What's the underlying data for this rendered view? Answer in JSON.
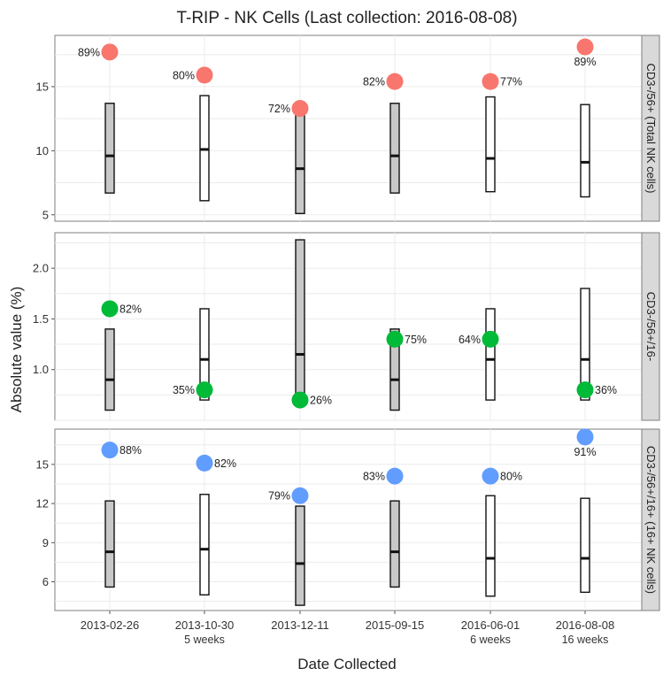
{
  "chart_data": {
    "type": "boxplot",
    "title": "T-RIP - NK Cells (Last collection: 2016-08-08)",
    "xlabel": "Date Collected",
    "ylabel": "Absolute value (%)",
    "categories": [
      "2013-02-26",
      "2013-10-30",
      "2013-12-11",
      "2015-09-15",
      "2016-06-01",
      "2016-08-08"
    ],
    "sublabels": [
      "",
      "5 weeks",
      "",
      "",
      "6 weeks",
      "16 weeks"
    ],
    "colors": {
      "panel_bg": "#ffffff",
      "grid": "#ebebeb",
      "strip_bg": "#d9d9d9",
      "box_shaded": "#c8c8c8",
      "box_open": "#ffffff"
    },
    "panels": [
      {
        "label": "CD3-/56+ (Total NK cells)",
        "ylim": [
          4.5,
          19
        ],
        "yticks": [
          5,
          10,
          15
        ],
        "point_color": "#f8766d",
        "boxes": [
          {
            "low": 6.7,
            "median": 9.6,
            "high": 13.7,
            "shaded": true
          },
          {
            "low": 6.1,
            "median": 10.1,
            "high": 14.3,
            "shaded": false
          },
          {
            "low": 5.1,
            "median": 8.6,
            "high": 13.3,
            "shaded": true
          },
          {
            "low": 6.7,
            "median": 9.6,
            "high": 13.7,
            "shaded": true
          },
          {
            "low": 6.8,
            "median": 9.4,
            "high": 14.2,
            "shaded": false
          },
          {
            "low": 6.4,
            "median": 9.1,
            "high": 13.6,
            "shaded": false
          }
        ],
        "points": [
          17.7,
          15.9,
          13.3,
          15.4,
          15.4,
          18.1
        ],
        "percentiles": [
          "89%",
          "80%",
          "72%",
          "82%",
          "77%",
          "89%"
        ],
        "label_pos": [
          "left",
          "left",
          "left",
          "left",
          "right",
          "below"
        ]
      },
      {
        "label": "CD3-/56+/16-",
        "ylim": [
          0.5,
          2.35
        ],
        "yticks": [
          1.0,
          1.5,
          2.0
        ],
        "point_color": "#00ba38",
        "boxes": [
          {
            "low": 0.6,
            "median": 0.9,
            "high": 1.4,
            "shaded": true
          },
          {
            "low": 0.7,
            "median": 1.1,
            "high": 1.6,
            "shaded": false
          },
          {
            "low": 0.7,
            "median": 1.15,
            "high": 2.28,
            "shaded": true
          },
          {
            "low": 0.6,
            "median": 0.9,
            "high": 1.4,
            "shaded": true
          },
          {
            "low": 0.7,
            "median": 1.1,
            "high": 1.6,
            "shaded": false
          },
          {
            "low": 0.7,
            "median": 1.1,
            "high": 1.8,
            "shaded": false
          }
        ],
        "points": [
          1.6,
          0.8,
          0.7,
          1.3,
          1.3,
          0.8
        ],
        "percentiles": [
          "82%",
          "35%",
          "26%",
          "75%",
          "64%",
          "36%"
        ],
        "label_pos": [
          "right",
          "left",
          "right",
          "right",
          "left",
          "right"
        ]
      },
      {
        "label": "CD3-/56+/16+ (16+ NK cells)",
        "ylim": [
          3.8,
          17.7
        ],
        "yticks": [
          6,
          9,
          12,
          15
        ],
        "point_color": "#619cff",
        "boxes": [
          {
            "low": 5.6,
            "median": 8.3,
            "high": 12.2,
            "shaded": true
          },
          {
            "low": 5.0,
            "median": 8.5,
            "high": 12.7,
            "shaded": false
          },
          {
            "low": 4.2,
            "median": 7.4,
            "high": 11.8,
            "shaded": true
          },
          {
            "low": 5.6,
            "median": 8.3,
            "high": 12.2,
            "shaded": true
          },
          {
            "low": 4.9,
            "median": 7.8,
            "high": 12.6,
            "shaded": false
          },
          {
            "low": 5.2,
            "median": 7.8,
            "high": 12.4,
            "shaded": false
          }
        ],
        "points": [
          16.1,
          15.1,
          12.6,
          14.1,
          14.1,
          17.1
        ],
        "percentiles": [
          "88%",
          "82%",
          "79%",
          "83%",
          "80%",
          "91%"
        ],
        "label_pos": [
          "right",
          "right",
          "left",
          "left",
          "right",
          "below"
        ]
      }
    ]
  }
}
